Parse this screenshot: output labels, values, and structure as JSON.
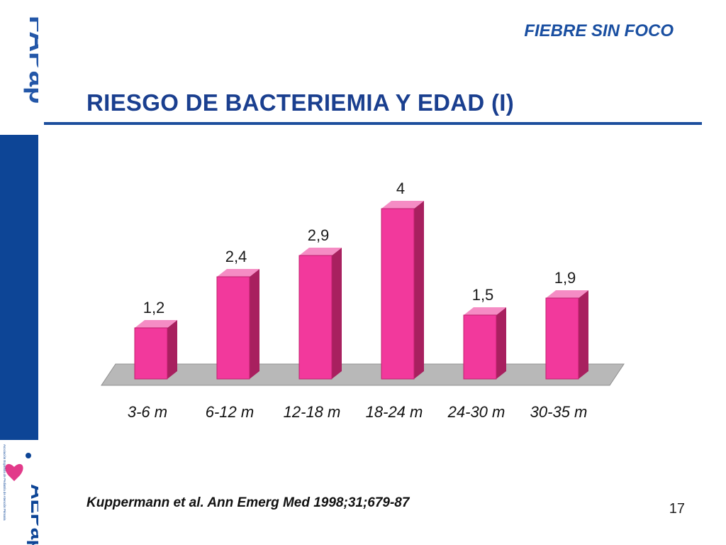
{
  "header": {
    "section_title": "FIEBRE SIN FOCO",
    "slide_title": "RIESGO DE BACTERIEMIA Y EDAD (I)"
  },
  "footer": {
    "citation": "Kuppermann et al. Ann Emerg Med 1998;31;679-87",
    "page_number": "17"
  },
  "branding": {
    "top_logo": "FAPap",
    "bottom_logo": "AEPap",
    "bottom_logo_caption": "Asociación Española de Pediatría de Atención Primaria",
    "icons": [
      "fapap-logo",
      "aepap-logo"
    ]
  },
  "colors": {
    "bar_front": "#f2399c",
    "bar_side": "#a8205f",
    "bar_top": "#f58cc4",
    "floor": "#b8b8b8",
    "title_blue": "#1a3f8f",
    "band_blue": "#0d4596"
  },
  "chart_data": {
    "type": "bar",
    "style": "3d-column",
    "categories": [
      "3-6 m",
      "6-12 m",
      "12-18 m",
      "18-24 m",
      "24-30 m",
      "30-35 m"
    ],
    "values": [
      1.2,
      2.4,
      2.9,
      4,
      1.5,
      1.9
    ],
    "data_labels": [
      "1,2",
      "2,4",
      "2,9",
      "4",
      "1,5",
      "1,9"
    ],
    "title": "",
    "xlabel": "",
    "ylabel": "",
    "ylim": [
      0,
      4
    ],
    "grid": false,
    "legend": "none"
  }
}
